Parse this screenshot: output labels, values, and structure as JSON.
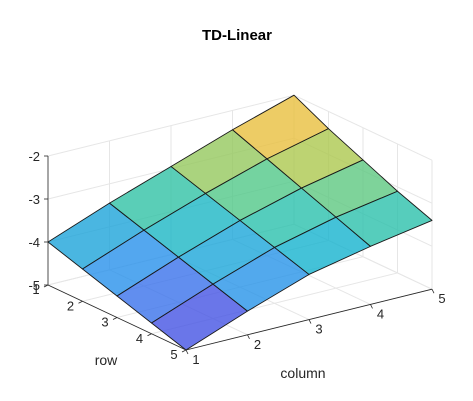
{
  "chart_data": {
    "type": "surface",
    "title": "TD-Linear",
    "xlabel": "column",
    "ylabel": "row",
    "zlabel": "",
    "x": [
      1,
      2,
      3,
      4,
      5
    ],
    "y": [
      1,
      2,
      3,
      4,
      5
    ],
    "z": [
      [
        -4.0,
        -3.45,
        -2.95,
        -2.45,
        -2.0
      ],
      [
        -4.25,
        -3.7,
        -3.2,
        -2.75,
        -2.4
      ],
      [
        -4.5,
        -3.95,
        -3.45,
        -3.05,
        -2.75
      ],
      [
        -4.75,
        -4.2,
        -3.7,
        -3.35,
        -3.1
      ],
      [
        -5.0,
        -4.45,
        -3.95,
        -3.65,
        -3.4
      ]
    ],
    "xticks": [
      "1",
      "2",
      "3",
      "4",
      "5"
    ],
    "yticks": [
      "1",
      "2",
      "3",
      "4",
      "5"
    ],
    "zticks": [
      "-5",
      "-4",
      "-3",
      "-2"
    ],
    "zlim": [
      -5,
      -2
    ],
    "grid": true,
    "colormap": "parula",
    "colors": {
      "edge": "#1a1a1a",
      "grid": "#e6e6e6",
      "axis": "#262626"
    }
  }
}
